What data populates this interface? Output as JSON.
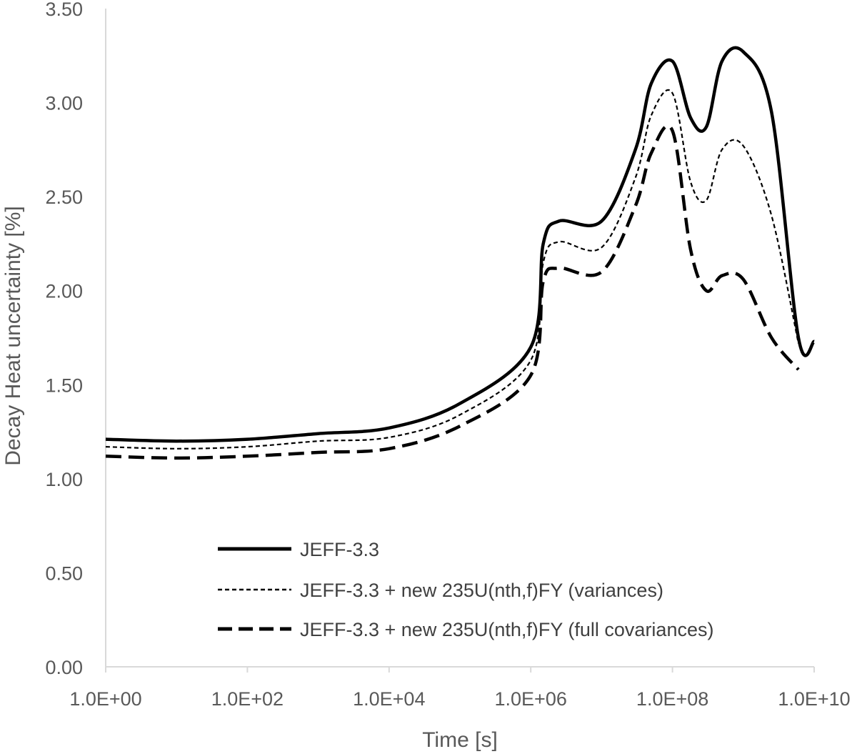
{
  "chart_data": {
    "type": "line",
    "title": "",
    "xlabel": "Time [s]",
    "ylabel": "Decay Heat uncertainty [%]",
    "xscale": "log",
    "xlim": [
      1,
      10000000000
    ],
    "ylim": [
      0,
      3.5
    ],
    "x_ticks": [
      1,
      100,
      10000,
      1000000,
      100000000,
      10000000000
    ],
    "x_tick_labels": [
      "1.0E+00",
      "1.0E+02",
      "1.0E+04",
      "1.0E+06",
      "1.0E+08",
      "1.0E+10"
    ],
    "y_ticks": [
      0,
      0.5,
      1,
      1.5,
      2,
      2.5,
      3,
      3.5
    ],
    "y_tick_labels": [
      "0.00",
      "0.50",
      "1.00",
      "1.50",
      "2.00",
      "2.50",
      "3.00",
      "3.50"
    ],
    "grid": false,
    "legend_position": "bottom-center",
    "series": [
      {
        "name": "JEFF-3.3",
        "line_style": "solid",
        "color": "#000000",
        "x": [
          1,
          10,
          100,
          1000,
          10000,
          100000,
          1000000,
          1500000,
          2500000,
          10000000,
          30000000,
          50000000,
          100000000,
          180000000,
          300000000,
          500000000,
          1000000000,
          2500000000,
          6000000000,
          10000000000
        ],
        "y": [
          1.21,
          1.2,
          1.21,
          1.24,
          1.27,
          1.4,
          1.7,
          2.25,
          2.37,
          2.37,
          2.75,
          3.1,
          3.22,
          2.92,
          2.87,
          3.22,
          3.27,
          2.95,
          1.75,
          1.73
        ]
      },
      {
        "name": "JEFF-3.3 + new 235U(nth,f)FY (variances)",
        "line_style": "dotted",
        "color": "#000000",
        "x": [
          1,
          10,
          100,
          1000,
          10000,
          100000,
          1000000,
          1500000,
          2500000,
          10000000,
          30000000,
          50000000,
          100000000,
          180000000,
          300000000,
          500000000,
          1000000000,
          2500000000,
          6000000000
        ],
        "y": [
          1.17,
          1.16,
          1.17,
          1.2,
          1.22,
          1.34,
          1.63,
          2.15,
          2.26,
          2.23,
          2.6,
          2.93,
          3.05,
          2.58,
          2.48,
          2.75,
          2.77,
          2.4,
          1.72
        ]
      },
      {
        "name": "JEFF-3.3 + new 235U(nth,f)FY (full covariances)",
        "line_style": "dashed",
        "color": "#000000",
        "x": [
          1,
          10,
          100,
          1000,
          10000,
          100000,
          1000000,
          1500000,
          2500000,
          10000000,
          30000000,
          50000000,
          100000000,
          180000000,
          300000000,
          500000000,
          1000000000,
          2500000000,
          6000000000
        ],
        "y": [
          1.12,
          1.11,
          1.12,
          1.14,
          1.16,
          1.28,
          1.55,
          2.05,
          2.12,
          2.1,
          2.45,
          2.73,
          2.85,
          2.22,
          2.0,
          2.08,
          2.06,
          1.75,
          1.58
        ]
      }
    ]
  }
}
